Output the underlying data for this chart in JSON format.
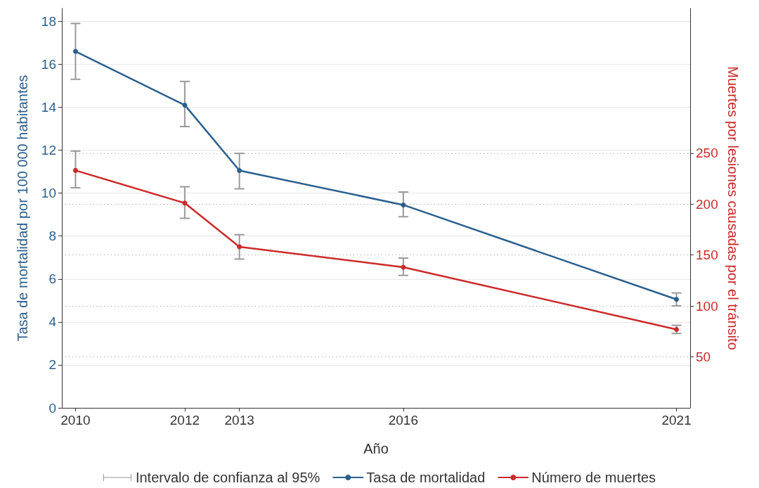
{
  "chart_data": {
    "type": "line",
    "xlabel": "Año",
    "ylabel": "Tasa de mortalidad por 100 000 habitantes",
    "y2label": "Muertes por lesiones causadas por el tránsito",
    "x": [
      2010,
      2012,
      2013,
      2016,
      2021
    ],
    "xlim": [
      2009.75,
      2021.25
    ],
    "xticks": [
      2010,
      2012,
      2013,
      2016,
      2021
    ],
    "ylim": [
      0,
      18.6
    ],
    "yticks": [
      0,
      2,
      4,
      6,
      8,
      10,
      12,
      14,
      16,
      18
    ],
    "y2lim": [
      0,
      392
    ],
    "y2ticks": [
      50,
      100,
      150,
      200,
      250
    ],
    "series": [
      {
        "name": "Tasa de mortalidad",
        "color": "#2b5f8e",
        "values": [
          16.6,
          14.1,
          11.05,
          9.45,
          5.05
        ],
        "errors": [
          [
            15.3,
            17.9
          ],
          [
            13.1,
            15.2
          ],
          [
            10.2,
            11.85
          ],
          [
            8.9,
            10.05
          ],
          [
            4.75,
            5.35
          ]
        ]
      },
      {
        "name": "Número de muertes",
        "color": "#cc2a2a",
        "axis": "y2",
        "values": [
          233,
          201,
          158,
          138,
          77
        ],
        "errors": [
          [
            216,
            252
          ],
          [
            186,
            217
          ],
          [
            146,
            170
          ],
          [
            130,
            147
          ],
          [
            73,
            81
          ]
        ]
      }
    ],
    "annotations": [
      "Intervalo de confianza al 95%"
    ],
    "grid": "y",
    "legend": "bottom",
    "marker": "circle",
    "line_style": "solid"
  }
}
